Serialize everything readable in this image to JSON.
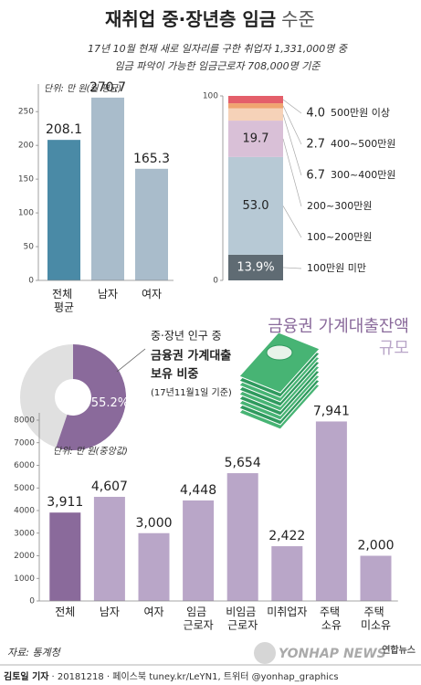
{
  "header": {
    "title_main": "재취업 중·장년층 임금",
    "title_light": "수준",
    "subtitle_lines": [
      "17년 10월 현재 새로 일자리를 구한 취업자 1,331,000명 중",
      "임금 파악이 가능한 임금근로자 708,000명 기준"
    ]
  },
  "chart_data": [
    {
      "type": "bar",
      "y_label": "단위: 만 원(월 평균)",
      "categories": [
        "전체 평균",
        "남자",
        "여자"
      ],
      "values": [
        208.1,
        270.7,
        165.3
      ],
      "colors": [
        "#4a8aa6",
        "#a9bccb",
        "#a9bccb"
      ],
      "ylim": [
        0,
        280
      ],
      "yticks": [
        0,
        50,
        100,
        150,
        200,
        250
      ],
      "grid": false
    },
    {
      "type": "stacked_bar",
      "ylim": [
        0,
        100
      ],
      "yticks": [
        0,
        100
      ],
      "series": [
        {
          "name": "100만원 미만",
          "color": "#5f6b73",
          "values": [
            13.9
          ],
          "value_labels": [
            "13.9%"
          ]
        },
        {
          "name": "100~200만원",
          "color": "#b7c9d5",
          "values": [
            53.0
          ],
          "value_labels": [
            "53.0"
          ]
        },
        {
          "name": "200~300만원",
          "color": "#d9c0d7",
          "values": [
            19.7
          ]
        },
        {
          "name": "300~400만원",
          "color": "#f6d2b8",
          "values": [
            6.7
          ]
        },
        {
          "name": "400~500만원",
          "color": "#f0a570",
          "values": [
            2.7
          ]
        },
        {
          "name": "500만원 이상",
          "color": "#e45f6a",
          "values": [
            4.0
          ],
          "value_labels": [
            "4.0"
          ]
        }
      ]
    },
    {
      "type": "donut",
      "subtitle": "중·장년 인구 중",
      "title_lines": [
        "금융권 가계대출",
        "보유 비중"
      ],
      "note": "(17년11월1일 기준)",
      "values": [
        55.2
      ],
      "value_labels": [
        "55.2%"
      ],
      "color": "#8a6a9b"
    },
    {
      "type": "bar",
      "title": "금융권 가계대출잔액",
      "subtitle": "규모",
      "y_label": "단위: 만 원(중앙값)",
      "categories": [
        "전체",
        "남자",
        "여자",
        "임금 근로자",
        "비임금 근로자",
        "미취업자",
        "주택 소유",
        "주택 미소유"
      ],
      "values": [
        3911,
        4607,
        3000,
        4448,
        5654,
        2422,
        7941,
        2000
      ],
      "value_labels": [
        "3,911",
        "4,607",
        "3,000",
        "4,448",
        "5,654",
        "2,422",
        "7,941",
        "2,000"
      ],
      "colors": [
        "#8a6a9b",
        "#b9a6c8",
        "#b9a6c8",
        "#b9a6c8",
        "#b9a6c8",
        "#b9a6c8",
        "#b9a6c8",
        "#b9a6c8"
      ],
      "ylim": [
        0,
        8000
      ],
      "yticks": [
        0,
        1000,
        2000,
        3000,
        4000,
        5000,
        6000,
        7000,
        8000
      ],
      "grid": false
    }
  ],
  "footer": {
    "source": "자료: 통계청",
    "reporter": "김토일 기자",
    "info": "· 20181218 · 페이스북 tuney.kr/LeYN1, 트위터 @yonhap_graphics",
    "logo_en": "YONHAP NEWS",
    "logo_ko": "연합뉴스"
  }
}
